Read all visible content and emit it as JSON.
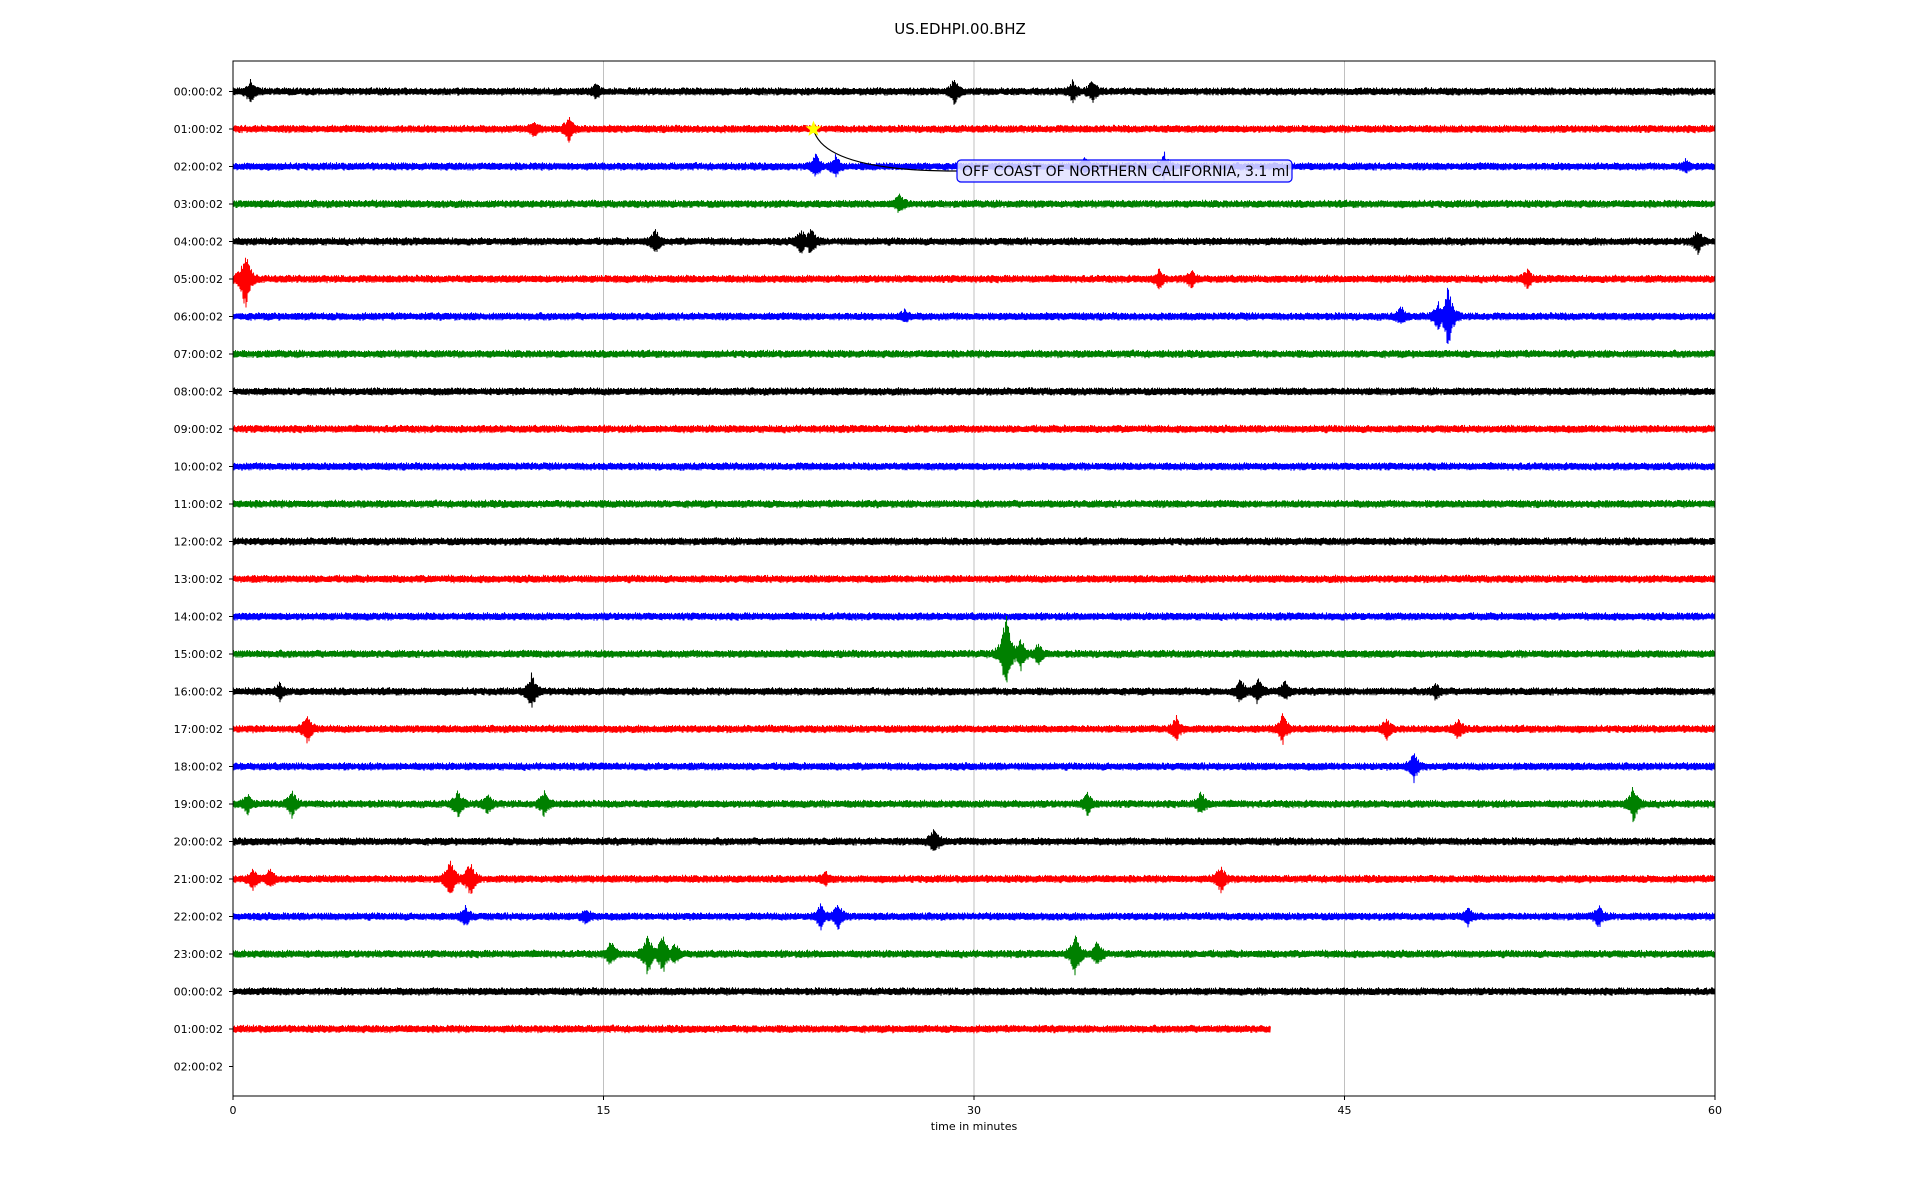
{
  "chart_data": {
    "type": "line",
    "title": "US.EDHPI.00.BHZ",
    "xlabel": "time in minutes",
    "ylabel": "",
    "xlim": [
      0,
      60
    ],
    "xticks": [
      0,
      15,
      30,
      45,
      60
    ],
    "xtick_labels": [
      "0",
      "15",
      "30",
      "45",
      "60"
    ],
    "grid": "vertical lines at x ticks",
    "row_labels": [
      "00:00:02",
      "01:00:02",
      "02:00:02",
      "03:00:02",
      "04:00:02",
      "05:00:02",
      "06:00:02",
      "07:00:02",
      "08:00:02",
      "09:00:02",
      "10:00:02",
      "11:00:02",
      "12:00:02",
      "13:00:02",
      "14:00:02",
      "15:00:02",
      "16:00:02",
      "17:00:02",
      "18:00:02",
      "19:00:02",
      "20:00:02",
      "21:00:02",
      "22:00:02",
      "23:00:02",
      "00:00:02",
      "01:00:02",
      "02:00:02"
    ],
    "color_cycle": [
      "#000000",
      "#ff0000",
      "#0000ff",
      "#008000"
    ],
    "traces": [
      {
        "row": 0,
        "end_min": 60,
        "bursts": [
          {
            "t": 0.7,
            "a": 11
          },
          {
            "t": 14.7,
            "a": 7
          },
          {
            "t": 29.2,
            "a": 12
          },
          {
            "t": 34.0,
            "a": 10
          },
          {
            "t": 34.8,
            "a": 11
          }
        ]
      },
      {
        "row": 1,
        "end_min": 60,
        "bursts": [
          {
            "t": 12.2,
            "a": 8
          },
          {
            "t": 13.6,
            "a": 12
          }
        ]
      },
      {
        "row": 2,
        "end_min": 60,
        "bursts": [
          {
            "t": 23.6,
            "a": 11
          },
          {
            "t": 24.4,
            "a": 10
          },
          {
            "t": 34.5,
            "a": 8
          },
          {
            "t": 37.7,
            "a": 13
          },
          {
            "t": 58.8,
            "a": 6
          }
        ]
      },
      {
        "row": 3,
        "end_min": 60,
        "bursts": [
          {
            "t": 27.0,
            "a": 10
          }
        ]
      },
      {
        "row": 4,
        "end_min": 60,
        "bursts": [
          {
            "t": 17.1,
            "a": 12
          },
          {
            "t": 23.0,
            "a": 13
          },
          {
            "t": 23.4,
            "a": 14
          },
          {
            "t": 59.3,
            "a": 12
          }
        ]
      },
      {
        "row": 5,
        "end_min": 60,
        "bursts": [
          {
            "t": 0.5,
            "a": 30
          },
          {
            "t": 37.5,
            "a": 9
          },
          {
            "t": 38.8,
            "a": 8
          },
          {
            "t": 52.4,
            "a": 9
          }
        ]
      },
      {
        "row": 6,
        "end_min": 60,
        "bursts": [
          {
            "t": 47.3,
            "a": 9
          },
          {
            "t": 48.8,
            "a": 14
          },
          {
            "t": 49.2,
            "a": 33
          },
          {
            "t": 27.2,
            "a": 6
          }
        ]
      },
      {
        "row": 7,
        "end_min": 60,
        "bursts": []
      },
      {
        "row": 8,
        "end_min": 60,
        "bursts": []
      },
      {
        "row": 9,
        "end_min": 60,
        "bursts": []
      },
      {
        "row": 10,
        "end_min": 60,
        "bursts": []
      },
      {
        "row": 11,
        "end_min": 60,
        "bursts": []
      },
      {
        "row": 12,
        "end_min": 60,
        "bursts": []
      },
      {
        "row": 13,
        "end_min": 60,
        "bursts": []
      },
      {
        "row": 14,
        "end_min": 60,
        "bursts": []
      },
      {
        "row": 15,
        "end_min": 60,
        "bursts": [
          {
            "t": 31.3,
            "a": 45
          },
          {
            "t": 31.9,
            "a": 16
          },
          {
            "t": 32.6,
            "a": 10
          }
        ]
      },
      {
        "row": 16,
        "end_min": 60,
        "bursts": [
          {
            "t": 1.9,
            "a": 8
          },
          {
            "t": 12.1,
            "a": 18
          },
          {
            "t": 40.8,
            "a": 12
          },
          {
            "t": 41.5,
            "a": 13
          },
          {
            "t": 42.6,
            "a": 10
          },
          {
            "t": 48.7,
            "a": 8
          }
        ]
      },
      {
        "row": 17,
        "end_min": 60,
        "bursts": [
          {
            "t": 3.0,
            "a": 15
          },
          {
            "t": 38.2,
            "a": 12
          },
          {
            "t": 42.5,
            "a": 14
          },
          {
            "t": 46.7,
            "a": 10
          },
          {
            "t": 49.6,
            "a": 10
          }
        ]
      },
      {
        "row": 18,
        "end_min": 60,
        "bursts": [
          {
            "t": 47.8,
            "a": 15
          }
        ]
      },
      {
        "row": 19,
        "end_min": 60,
        "bursts": [
          {
            "t": 0.6,
            "a": 9
          },
          {
            "t": 2.4,
            "a": 13
          },
          {
            "t": 9.1,
            "a": 14
          },
          {
            "t": 10.3,
            "a": 10
          },
          {
            "t": 12.6,
            "a": 12
          },
          {
            "t": 34.6,
            "a": 11
          },
          {
            "t": 39.2,
            "a": 12
          },
          {
            "t": 56.7,
            "a": 18
          }
        ]
      },
      {
        "row": 20,
        "end_min": 60,
        "bursts": [
          {
            "t": 28.4,
            "a": 14
          }
        ]
      },
      {
        "row": 21,
        "end_min": 60,
        "bursts": [
          {
            "t": 0.8,
            "a": 10
          },
          {
            "t": 1.5,
            "a": 10
          },
          {
            "t": 8.8,
            "a": 20
          },
          {
            "t": 9.6,
            "a": 18
          },
          {
            "t": 40.0,
            "a": 14
          },
          {
            "t": 24.0,
            "a": 6
          }
        ]
      },
      {
        "row": 22,
        "end_min": 60,
        "bursts": [
          {
            "t": 9.4,
            "a": 10
          },
          {
            "t": 14.3,
            "a": 8
          },
          {
            "t": 23.8,
            "a": 12
          },
          {
            "t": 24.5,
            "a": 13
          },
          {
            "t": 50.0,
            "a": 8
          },
          {
            "t": 55.3,
            "a": 10
          }
        ]
      },
      {
        "row": 23,
        "end_min": 60,
        "bursts": [
          {
            "t": 15.3,
            "a": 12
          },
          {
            "t": 16.8,
            "a": 22
          },
          {
            "t": 17.4,
            "a": 20
          },
          {
            "t": 17.9,
            "a": 10
          },
          {
            "t": 34.1,
            "a": 22
          },
          {
            "t": 35.0,
            "a": 12
          }
        ]
      },
      {
        "row": 24,
        "end_min": 60,
        "bursts": []
      },
      {
        "row": 25,
        "end_min": 42,
        "bursts": []
      }
    ],
    "event": {
      "label": "OFF COAST OF NORTHERN CALIFORNIA, 3.1 ml",
      "row": 1,
      "t": 23.5,
      "marker": "star",
      "marker_color": "#ffff00",
      "box_color": "#0000ff",
      "box_fill": "#e0e0ff"
    }
  }
}
